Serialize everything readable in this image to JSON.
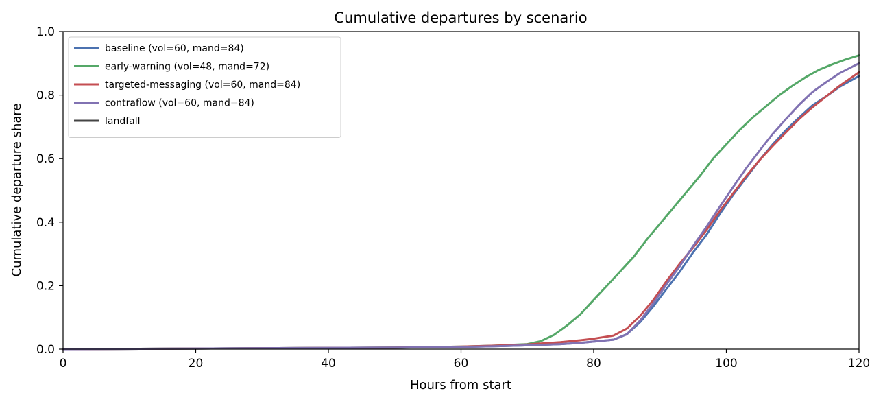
{
  "chart_data": {
    "type": "line",
    "title": "Cumulative departures by scenario",
    "xlabel": "Hours from start",
    "ylabel": "Cumulative departure share",
    "xlim": [
      0,
      120
    ],
    "ylim": [
      0,
      1.0
    ],
    "xticks": [
      0,
      20,
      40,
      60,
      80,
      100,
      120
    ],
    "xtick_labels": [
      "0",
      "20",
      "40",
      "60",
      "80",
      "100",
      "120"
    ],
    "yticks": [
      0,
      0.2,
      0.4,
      0.6,
      0.8,
      1.0
    ],
    "ytick_labels": [
      "0.0",
      "0.2",
      "0.4",
      "0.6",
      "0.8",
      "1.0"
    ],
    "grid": false,
    "legend_position": "upper-left",
    "series": [
      {
        "name": "baseline (vol=60, mand=84)",
        "color": "#4c72b0",
        "x": [
          0,
          20,
          40,
          50,
          60,
          65,
          70,
          75,
          78,
          80,
          83,
          85,
          87,
          89,
          91,
          93,
          95,
          97,
          99,
          101,
          103,
          105,
          107,
          109,
          111,
          113,
          115,
          117,
          120
        ],
        "y": [
          0.0,
          0.002,
          0.004,
          0.005,
          0.007,
          0.009,
          0.012,
          0.016,
          0.02,
          0.024,
          0.03,
          0.047,
          0.085,
          0.135,
          0.19,
          0.245,
          0.305,
          0.36,
          0.425,
          0.485,
          0.54,
          0.595,
          0.645,
          0.69,
          0.73,
          0.768,
          0.795,
          0.825,
          0.86
        ]
      },
      {
        "name": "early-warning (vol=48, mand=72)",
        "color": "#55a868",
        "x": [
          0,
          20,
          40,
          50,
          60,
          65,
          70,
          72,
          74,
          76,
          78,
          80,
          82,
          84,
          86,
          88,
          90,
          92,
          94,
          96,
          98,
          100,
          102,
          104,
          106,
          108,
          110,
          112,
          114,
          116,
          118,
          120
        ],
        "y": [
          0.0,
          0.002,
          0.004,
          0.005,
          0.008,
          0.011,
          0.016,
          0.025,
          0.045,
          0.075,
          0.11,
          0.155,
          0.2,
          0.245,
          0.29,
          0.345,
          0.395,
          0.445,
          0.495,
          0.545,
          0.6,
          0.645,
          0.69,
          0.73,
          0.765,
          0.8,
          0.83,
          0.857,
          0.88,
          0.897,
          0.912,
          0.925
        ]
      },
      {
        "name": "targeted-messaging (vol=60, mand=84)",
        "color": "#c44e52",
        "x": [
          0,
          20,
          40,
          50,
          60,
          65,
          70,
          75,
          78,
          80,
          83,
          85,
          87,
          89,
          91,
          93,
          95,
          97,
          99,
          101,
          103,
          105,
          107,
          109,
          111,
          113,
          115,
          117,
          120
        ],
        "y": [
          0.0,
          0.002,
          0.004,
          0.005,
          0.008,
          0.011,
          0.015,
          0.022,
          0.028,
          0.033,
          0.043,
          0.065,
          0.105,
          0.155,
          0.215,
          0.27,
          0.32,
          0.375,
          0.435,
          0.49,
          0.545,
          0.595,
          0.64,
          0.683,
          0.725,
          0.762,
          0.795,
          0.828,
          0.872
        ]
      },
      {
        "name": "contraflow (vol=60, mand=84)",
        "color": "#8172b2",
        "x": [
          0,
          20,
          40,
          50,
          60,
          65,
          70,
          75,
          78,
          80,
          83,
          85,
          87,
          89,
          91,
          93,
          95,
          97,
          99,
          101,
          103,
          105,
          107,
          109,
          111,
          113,
          115,
          117,
          120
        ],
        "y": [
          0.0,
          0.002,
          0.004,
          0.005,
          0.007,
          0.009,
          0.012,
          0.016,
          0.02,
          0.024,
          0.03,
          0.047,
          0.09,
          0.145,
          0.205,
          0.262,
          0.325,
          0.385,
          0.448,
          0.51,
          0.57,
          0.625,
          0.678,
          0.725,
          0.77,
          0.81,
          0.84,
          0.868,
          0.9
        ]
      },
      {
        "name": "landfall",
        "color": "#444444",
        "x": [],
        "y": []
      }
    ]
  }
}
